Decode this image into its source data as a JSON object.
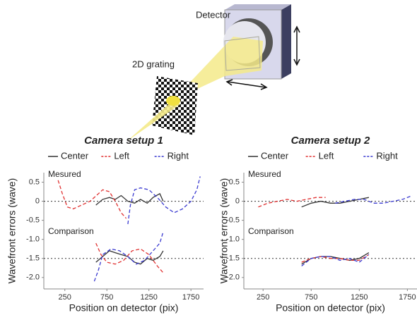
{
  "diagram": {
    "labels": [
      "Detector",
      "2D grating"
    ]
  },
  "chart_data": [
    {
      "type": "line",
      "title": "Camera setup 1",
      "xlabel": "Position on detector (pix)",
      "ylabel": "Wavefront errors (wave)",
      "annotations": [
        "Mesured",
        "Comparison"
      ],
      "xlim": [
        0,
        1900
      ],
      "xticks": [
        250,
        750,
        1250,
        1750
      ],
      "ylim": [
        -2.3,
        0.75
      ],
      "yticks": [
        0.5,
        0,
        -0.5,
        {
          "value": -1,
          "label": "-1.0"
        },
        -1.5,
        {
          "value": -2,
          "label": "-2.0"
        }
      ],
      "reference_lines": [
        0,
        -1.5
      ],
      "series": [
        {
          "name": "Center",
          "color": "#333333",
          "dashed": false,
          "x": [
            620,
            700,
            780,
            850,
            920,
            1000,
            1080,
            1150,
            1230,
            1300,
            1380,
            1420
          ],
          "values": [
            -0.1,
            0.05,
            0.1,
            0.05,
            0.15,
            0.0,
            -0.05,
            0.05,
            -0.05,
            0.1,
            0.2,
            0.0
          ],
          "comparison_x": [
            620,
            700,
            780,
            850,
            920,
            1000,
            1080,
            1150,
            1230,
            1300,
            1380,
            1420
          ],
          "comparison_values": [
            -1.6,
            -1.45,
            -1.3,
            -1.35,
            -1.4,
            -1.45,
            -1.6,
            -1.65,
            -1.5,
            -1.55,
            -1.45,
            -1.3
          ]
        },
        {
          "name": "Left",
          "color": "#e03030",
          "dashed": true,
          "x": [
            170,
            220,
            280,
            350,
            450,
            550,
            650,
            700,
            780,
            850,
            920,
            980
          ],
          "values": [
            0.55,
            0.2,
            -0.15,
            -0.2,
            -0.1,
            0.0,
            0.2,
            0.3,
            0.25,
            0.0,
            -0.3,
            -0.45
          ],
          "comparison_x": [
            620,
            680,
            750,
            850,
            950,
            1050,
            1150,
            1250,
            1350,
            1430
          ],
          "comparison_values": [
            -1.1,
            -1.4,
            -1.6,
            -1.65,
            -1.55,
            -1.3,
            -1.25,
            -1.4,
            -1.7,
            -1.9
          ]
        },
        {
          "name": "Right",
          "color": "#3a3ad0",
          "dashed": true,
          "x": [
            1000,
            1030,
            1080,
            1150,
            1250,
            1350,
            1450,
            1550,
            1650,
            1750,
            1820,
            1860
          ],
          "values": [
            -0.6,
            -0.1,
            0.3,
            0.35,
            0.3,
            0.1,
            -0.15,
            -0.3,
            -0.2,
            0.0,
            0.3,
            0.65
          ],
          "comparison_x": [
            600,
            650,
            700,
            800,
            900,
            1000,
            1100,
            1200,
            1300,
            1380,
            1420
          ],
          "comparison_values": [
            -2.1,
            -1.8,
            -1.4,
            -1.25,
            -1.3,
            -1.45,
            -1.65,
            -1.55,
            -1.3,
            -1.1,
            -0.8
          ]
        }
      ]
    },
    {
      "type": "line",
      "title": "Camera setup 2",
      "xlabel": "Position on detector (pix)",
      "ylabel": "Wavefront errors (wave)",
      "annotations": [
        "Mesured",
        "Comparison"
      ],
      "xlim": [
        50,
        1850
      ],
      "xticks": [
        250,
        750,
        1250,
        1750
      ],
      "ylim": [
        -2.3,
        0.75
      ],
      "yticks": [
        0.5,
        0,
        -0.5,
        {
          "value": -1,
          "label": "-1.0"
        },
        -1.5,
        {
          "value": -2,
          "label": "-2.0"
        }
      ],
      "reference_lines": [
        0,
        -1.5
      ],
      "series": [
        {
          "name": "Center",
          "color": "#333333",
          "dashed": false,
          "x": [
            650,
            750,
            850,
            950,
            1050,
            1150,
            1250,
            1350
          ],
          "values": [
            -0.15,
            -0.05,
            0.0,
            -0.05,
            -0.05,
            0.0,
            0.05,
            0.1
          ],
          "comparison_x": [
            650,
            750,
            850,
            950,
            1050,
            1150,
            1250,
            1350
          ],
          "comparison_values": [
            -1.65,
            -1.5,
            -1.45,
            -1.45,
            -1.5,
            -1.55,
            -1.5,
            -1.35
          ]
        },
        {
          "name": "Left",
          "color": "#e03030",
          "dashed": true,
          "x": [
            200,
            300,
            400,
            500,
            600,
            700,
            800,
            900
          ],
          "values": [
            -0.15,
            -0.05,
            0.0,
            0.05,
            0.0,
            0.05,
            0.1,
            0.1
          ],
          "comparison_x": [
            650,
            750,
            850,
            950,
            1050,
            1150,
            1250,
            1350
          ],
          "comparison_values": [
            -1.6,
            -1.5,
            -1.45,
            -1.5,
            -1.5,
            -1.55,
            -1.55,
            -1.4
          ]
        },
        {
          "name": "Right",
          "color": "#3a3ad0",
          "dashed": true,
          "x": [
            1000,
            1100,
            1200,
            1300,
            1400,
            1500,
            1600,
            1700,
            1800
          ],
          "values": [
            -0.05,
            0.0,
            0.05,
            0.05,
            -0.05,
            -0.05,
            0.0,
            0.05,
            0.15
          ],
          "comparison_x": [
            650,
            750,
            850,
            950,
            1050,
            1150,
            1250,
            1350
          ],
          "comparison_values": [
            -1.7,
            -1.5,
            -1.45,
            -1.45,
            -1.55,
            -1.5,
            -1.6,
            -1.4
          ]
        }
      ]
    }
  ]
}
